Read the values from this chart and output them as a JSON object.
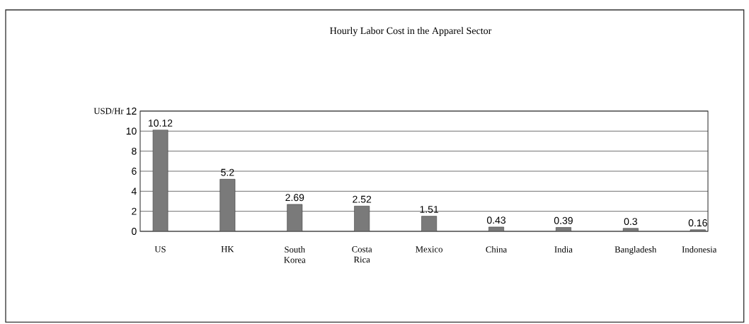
{
  "chart_data": {
    "type": "bar",
    "title": "Hourly  Labor  Cost in the Apparel Sector",
    "ylabel": "USD/Hr",
    "categories": [
      "US",
      "HK",
      "South Korea",
      "Costa Rica",
      "Mexico",
      "China",
      "India",
      "Bangladesh",
      "Indonesia"
    ],
    "values": [
      10.12,
      5.2,
      2.69,
      2.52,
      1.51,
      0.43,
      0.39,
      0.3,
      0.16
    ],
    "color": "#7a7a7a",
    "ylim": [
      0,
      12
    ],
    "yticks": [
      0,
      2,
      4,
      6,
      8,
      10,
      12
    ],
    "grid": "y",
    "data_labels": true
  }
}
